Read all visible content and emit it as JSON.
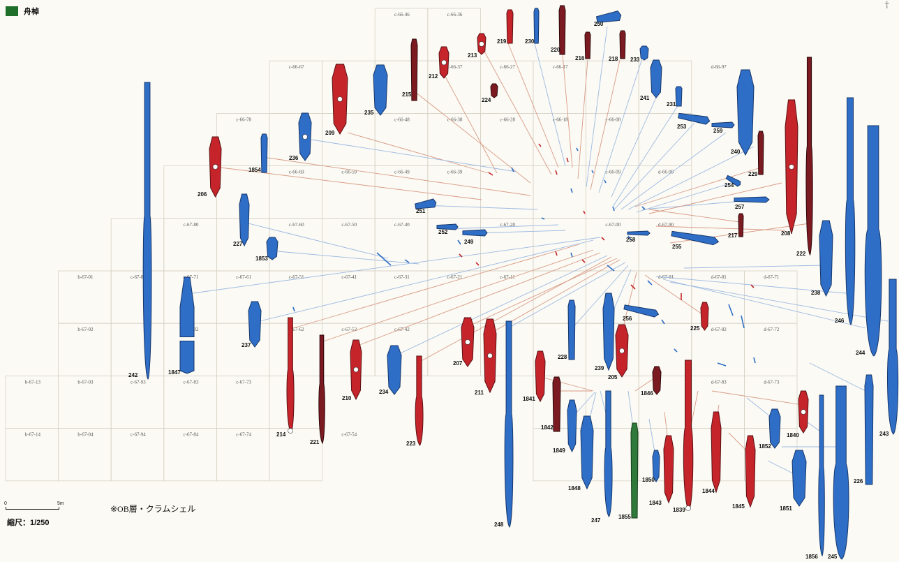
{
  "legend": {
    "label": "舟棹",
    "color": "#1f6f2a"
  },
  "corner_mark": "†",
  "scale": {
    "zero": "0",
    "five": "5m",
    "text": "縮尺：1/250"
  },
  "note": "※OB層・クラムシェル",
  "colors": {
    "blue": "#2f6ec6",
    "red": "#c4242a",
    "dark_red": "#7c1a22",
    "green": "#2f7a3a"
  },
  "grid_rows": [
    [
      "c-66-46",
      "c-66-36"
    ],
    [
      "c-66-67",
      "c-66-37",
      "c-66-27",
      "c-66-17",
      "d-66-97"
    ],
    [
      "c-66-78",
      "c-66-48",
      "c-66-38",
      "c-66-28",
      "c-66-18",
      "c-66-08"
    ],
    [
      "c-66-69",
      "c-66-59",
      "c-66-49",
      "c-66-39",
      "c-66-09",
      "d-66-99"
    ],
    [
      "c-67-80",
      "c-67-60",
      "c-67-50",
      "c-67-40",
      "c-67-20",
      "c-67-00",
      "d-67-90"
    ],
    [
      "b-67-01",
      "c-67-81",
      "c-67-71",
      "c-67-61",
      "c-67-51",
      "c-67-41",
      "c-67-31",
      "c-67-21",
      "c-67-11",
      "d-67-91",
      "d-67-81",
      "d-67-71"
    ],
    [
      "b-67-02",
      "c-67-82",
      "c-67-62",
      "c-67-52",
      "c-67-42",
      "d-67-82",
      "d-67-72"
    ],
    [
      "b-67-13",
      "b-67-03",
      "c-67-93",
      "c-67-83",
      "c-67-73",
      "d-67-83",
      "d-67-73"
    ],
    [
      "b-67-14",
      "b-67-04",
      "c-67-94",
      "c-67-84",
      "c-67-74",
      "c-67-54"
    ]
  ],
  "paddles": [
    {
      "id": "242",
      "color": "blue"
    },
    {
      "id": "206",
      "color": "red"
    },
    {
      "id": "1854",
      "color": "blue"
    },
    {
      "id": "236",
      "color": "blue"
    },
    {
      "id": "209",
      "color": "red"
    },
    {
      "id": "235",
      "color": "blue"
    },
    {
      "id": "215",
      "color": "dark_red"
    },
    {
      "id": "212",
      "color": "red"
    },
    {
      "id": "213",
      "color": "red"
    },
    {
      "id": "219",
      "color": "red"
    },
    {
      "id": "230",
      "color": "blue"
    },
    {
      "id": "220",
      "color": "dark_red"
    },
    {
      "id": "216",
      "color": "dark_red"
    },
    {
      "id": "250",
      "color": "blue"
    },
    {
      "id": "218",
      "color": "dark_red"
    },
    {
      "id": "233",
      "color": "blue"
    },
    {
      "id": "224",
      "color": "dark_red"
    },
    {
      "id": "241",
      "color": "blue"
    },
    {
      "id": "231",
      "color": "blue"
    },
    {
      "id": "253",
      "color": "blue"
    },
    {
      "id": "259",
      "color": "blue"
    },
    {
      "id": "240",
      "color": "blue"
    },
    {
      "id": "229",
      "color": "dark_red"
    },
    {
      "id": "254",
      "color": "blue"
    },
    {
      "id": "257",
      "color": "blue"
    },
    {
      "id": "217",
      "color": "dark_red"
    },
    {
      "id": "208",
      "color": "red"
    },
    {
      "id": "222",
      "color": "dark_red"
    },
    {
      "id": "227",
      "color": "blue"
    },
    {
      "id": "1853",
      "color": "blue"
    },
    {
      "id": "251",
      "color": "blue"
    },
    {
      "id": "252",
      "color": "blue"
    },
    {
      "id": "249",
      "color": "blue"
    },
    {
      "id": "258",
      "color": "blue"
    },
    {
      "id": "255",
      "color": "blue"
    },
    {
      "id": "238",
      "color": "blue"
    },
    {
      "id": "1847",
      "color": "blue"
    },
    {
      "id": "237",
      "color": "blue"
    },
    {
      "id": "214",
      "color": "red"
    },
    {
      "id": "221",
      "color": "dark_red"
    },
    {
      "id": "210",
      "color": "red"
    },
    {
      "id": "234",
      "color": "blue"
    },
    {
      "id": "223",
      "color": "red"
    },
    {
      "id": "207",
      "color": "red"
    },
    {
      "id": "211",
      "color": "red"
    },
    {
      "id": "248",
      "color": "blue"
    },
    {
      "id": "228",
      "color": "blue"
    },
    {
      "id": "239",
      "color": "blue"
    },
    {
      "id": "205",
      "color": "red"
    },
    {
      "id": "256",
      "color": "blue"
    },
    {
      "id": "225",
      "color": "red"
    },
    {
      "id": "246",
      "color": "blue"
    },
    {
      "id": "244",
      "color": "blue"
    },
    {
      "id": "243",
      "color": "blue"
    },
    {
      "id": "1841",
      "color": "red"
    },
    {
      "id": "1842",
      "color": "dark_red"
    },
    {
      "id": "1849",
      "color": "blue"
    },
    {
      "id": "1848",
      "color": "blue"
    },
    {
      "id": "247",
      "color": "blue"
    },
    {
      "id": "1855",
      "color": "green"
    },
    {
      "id": "1846",
      "color": "dark_red"
    },
    {
      "id": "1850",
      "color": "blue"
    },
    {
      "id": "1843",
      "color": "red"
    },
    {
      "id": "1839",
      "color": "red"
    },
    {
      "id": "1844",
      "color": "red"
    },
    {
      "id": "1845",
      "color": "red"
    },
    {
      "id": "1852",
      "color": "blue"
    },
    {
      "id": "1851",
      "color": "blue"
    },
    {
      "id": "1840",
      "color": "red"
    },
    {
      "id": "226",
      "color": "blue"
    },
    {
      "id": "1856",
      "color": "blue"
    },
    {
      "id": "245",
      "color": "blue"
    }
  ]
}
